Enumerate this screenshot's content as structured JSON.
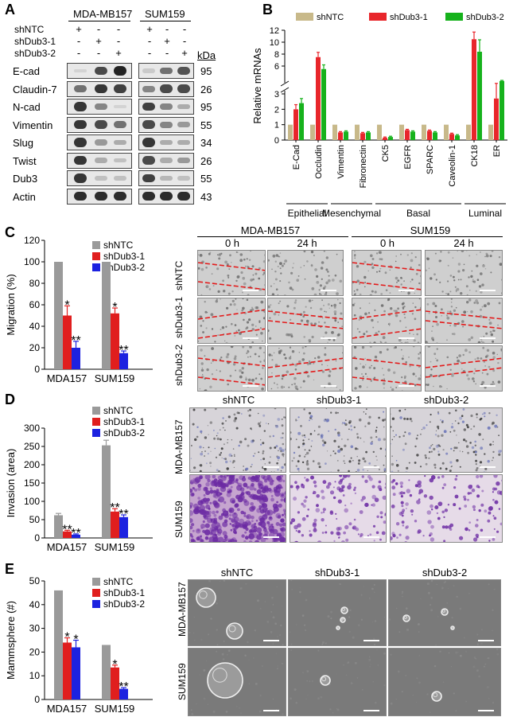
{
  "panels": {
    "a": "A",
    "b": "B",
    "c": "C",
    "d": "D",
    "e": "E"
  },
  "westernBlot": {
    "cellLines": [
      "MDA-MB157",
      "SUM159"
    ],
    "conditions": [
      {
        "label": "shNTC",
        "marks": [
          "+",
          "-",
          "-"
        ]
      },
      {
        "label": "shDub3-1",
        "marks": [
          "-",
          "+",
          "-"
        ]
      },
      {
        "label": "shDub3-2",
        "marks": [
          "-",
          "-",
          "+"
        ]
      }
    ],
    "kdaLabel": "kDa",
    "proteins": [
      {
        "name": "E-cad",
        "kda": "95"
      },
      {
        "name": "Claudin-7",
        "kda": "26"
      },
      {
        "name": "N-cad",
        "kda": "95"
      },
      {
        "name": "Vimentin",
        "kda": "55"
      },
      {
        "name": "Slug",
        "kda": "34"
      },
      {
        "name": "Twist",
        "kda": "26"
      },
      {
        "name": "Dub3",
        "kda": "55"
      },
      {
        "name": "Actin",
        "kda": "43"
      }
    ]
  },
  "colors": {
    "shNTC": "#c8b98a",
    "shDub31": "#e8262b",
    "shDub32": "#16b21c",
    "gray": "#9a9a9a",
    "red": "#e01e1e",
    "blue": "#1c22e0",
    "scratch": "#e31b1b"
  },
  "chart_data": [
    {
      "type": "bar",
      "id": "B",
      "ylabel": "Relative mRNAs",
      "categories": [
        "E-Cad",
        "Occludin",
        "Vimentin",
        "Fibronectin",
        "CK5",
        "EGFR",
        "SPARC",
        "Caveolin-1",
        "CK18",
        "ER"
      ],
      "groups": [
        {
          "label": "Epithelial",
          "members": [
            "E-Cad",
            "Occludin"
          ]
        },
        {
          "label": "Mesenchymal",
          "members": [
            "Vimentin",
            "Fibronectin"
          ]
        },
        {
          "label": "Basal",
          "members": [
            "CK5",
            "EGFR",
            "SPARC",
            "Caveolin-1"
          ]
        },
        {
          "label": "Luminal",
          "members": [
            "CK18",
            "ER"
          ]
        }
      ],
      "series": [
        {
          "name": "shNTC",
          "values": [
            1,
            1,
            1,
            1,
            1,
            1,
            1,
            1,
            1,
            1
          ]
        },
        {
          "name": "shDub3-1",
          "values": [
            2.0,
            7.5,
            0.5,
            0.45,
            0.15,
            0.65,
            0.6,
            0.4,
            10.5,
            2.7
          ]
        },
        {
          "name": "shDub3-2",
          "values": [
            2.4,
            5.5,
            0.55,
            0.5,
            0.2,
            0.55,
            0.5,
            0.3,
            8.4,
            3.5
          ]
        }
      ],
      "errors": [
        [
          0,
          0,
          0,
          0,
          0,
          0,
          0,
          0,
          0,
          0
        ],
        [
          0.3,
          0.8,
          0.05,
          0.05,
          0.05,
          0.05,
          0.05,
          0.05,
          1.2,
          0.4
        ],
        [
          0.3,
          0.7,
          0.05,
          0.05,
          0.05,
          0.05,
          0.05,
          0.05,
          2.0,
          0.1
        ]
      ],
      "axisBreak": {
        "lower": [
          0,
          3
        ],
        "upper": [
          4,
          12
        ],
        "lowerTicks": [
          "0",
          "1",
          "2",
          "3"
        ],
        "upperTicks": [
          "6",
          "8",
          "10",
          "12"
        ]
      }
    },
    {
      "type": "bar",
      "id": "C",
      "ylabel": "Migration (%)",
      "categories": [
        "MDA157",
        "SUM159"
      ],
      "series": [
        {
          "name": "shNTC",
          "values": [
            100,
            100
          ]
        },
        {
          "name": "shDub3-1",
          "values": [
            50,
            52
          ]
        },
        {
          "name": "shDub3-2",
          "values": [
            20,
            15
          ]
        }
      ],
      "errors": [
        [
          0,
          0
        ],
        [
          9,
          5
        ],
        [
          6,
          2
        ]
      ],
      "significance": [
        [
          "",
          "*",
          "**"
        ],
        [
          "",
          "*",
          "**"
        ]
      ],
      "ylim": [
        0,
        120
      ],
      "yticks": [
        "0",
        "20",
        "40",
        "60",
        "80",
        "100",
        "120"
      ]
    },
    {
      "type": "bar",
      "id": "D",
      "ylabel": "Invasion (area)",
      "categories": [
        "MDA157",
        "SUM159"
      ],
      "series": [
        {
          "name": "shNTC",
          "values": [
            62,
            253
          ]
        },
        {
          "name": "shDub3-1",
          "values": [
            18,
            72
          ]
        },
        {
          "name": "shDub3-2",
          "values": [
            9,
            57
          ]
        }
      ],
      "errors": [
        [
          5,
          14
        ],
        [
          3,
          8
        ],
        [
          2,
          6
        ]
      ],
      "significance": [
        [
          "",
          "**",
          "**"
        ],
        [
          "",
          "**",
          "**"
        ]
      ],
      "ylim": [
        0,
        300
      ],
      "yticks": [
        "0",
        "50",
        "100",
        "150",
        "200",
        "250",
        "300"
      ]
    },
    {
      "type": "bar",
      "id": "E",
      "ylabel": "Mammsphere (#)",
      "categories": [
        "MDA157",
        "SUM159"
      ],
      "series": [
        {
          "name": "shNTC",
          "values": [
            46,
            23
          ]
        },
        {
          "name": "shDub3-1",
          "values": [
            24,
            13.5
          ]
        },
        {
          "name": "shDub3-2",
          "values": [
            22,
            4.5
          ]
        }
      ],
      "errors": [
        [
          0,
          0
        ],
        [
          2,
          1
        ],
        [
          3,
          0.5
        ]
      ],
      "significance": [
        [
          "",
          "*",
          "*"
        ],
        [
          "",
          "*",
          "**"
        ]
      ],
      "ylim": [
        0,
        50
      ],
      "yticks": [
        "0",
        "10",
        "20",
        "30",
        "40",
        "50"
      ]
    }
  ],
  "migration": {
    "cellLines": [
      "MDA-MB157",
      "SUM159"
    ],
    "times": [
      "0 h",
      "24 h",
      "0 h",
      "24 h"
    ],
    "rows": [
      "shNTC",
      "shDub3-1",
      "shDub3-2"
    ]
  },
  "invasion": {
    "cols": [
      "shNTC",
      "shDub3-1",
      "shDub3-2"
    ],
    "rows": [
      "MDA-MB157",
      "SUM159"
    ]
  },
  "sphere": {
    "cols": [
      "shNTC",
      "shDub3-1",
      "shDub3-2"
    ],
    "rows": [
      "MDA-MB157",
      "SUM159"
    ]
  }
}
